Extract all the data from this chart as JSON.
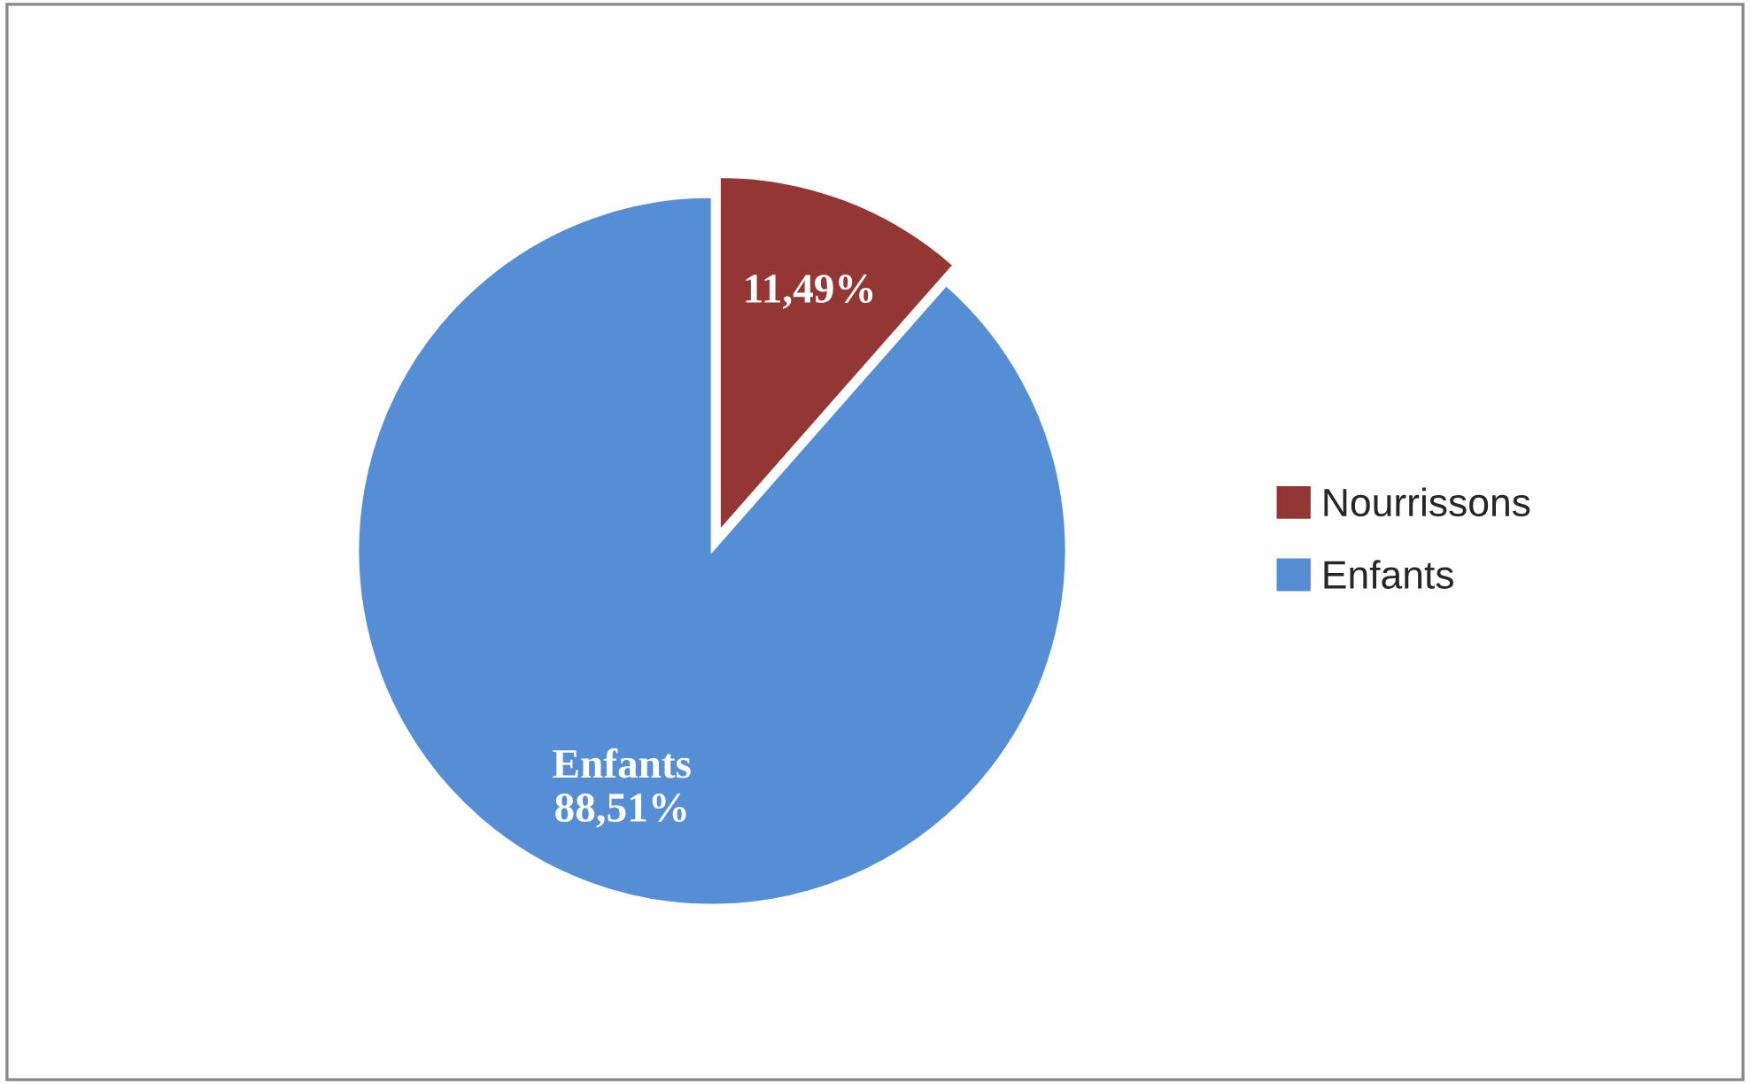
{
  "chart_data": {
    "type": "pie",
    "categories": [
      "Nourrissons",
      "Enfants"
    ],
    "values": [
      11.49,
      88.51
    ],
    "colors": [
      "#943634",
      "#558ed5"
    ],
    "value_labels": [
      "11,49%",
      "Enfants\n88,51%"
    ],
    "legend": "right"
  }
}
